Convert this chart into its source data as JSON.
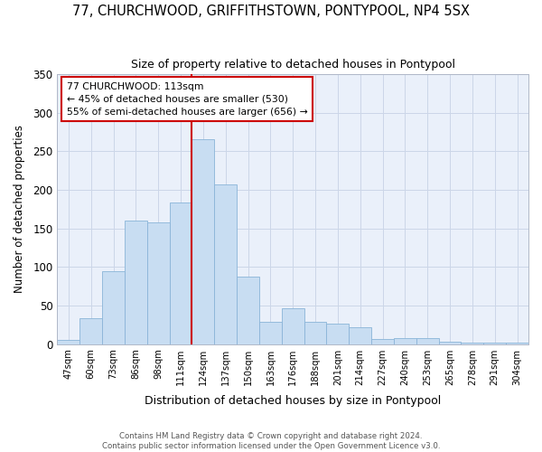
{
  "title": "77, CHURCHWOOD, GRIFFITHSTOWN, PONTYPOOL, NP4 5SX",
  "subtitle": "Size of property relative to detached houses in Pontypool",
  "xlabel": "Distribution of detached houses by size in Pontypool",
  "ylabel": "Number of detached properties",
  "categories": [
    "47sqm",
    "60sqm",
    "73sqm",
    "86sqm",
    "98sqm",
    "111sqm",
    "124sqm",
    "137sqm",
    "150sqm",
    "163sqm",
    "176sqm",
    "188sqm",
    "201sqm",
    "214sqm",
    "227sqm",
    "240sqm",
    "253sqm",
    "265sqm",
    "278sqm",
    "291sqm",
    "304sqm"
  ],
  "values": [
    5,
    34,
    95,
    160,
    158,
    184,
    265,
    207,
    88,
    29,
    47,
    29,
    27,
    22,
    7,
    8,
    8,
    3,
    2,
    2,
    2
  ],
  "bar_color": "#c8ddf2",
  "bar_edge_color": "#8ab4d8",
  "vline_x_index": 5,
  "vline_color": "#cc0000",
  "annotation_title": "77 CHURCHWOOD: 113sqm",
  "annotation_line1": "← 45% of detached houses are smaller (530)",
  "annotation_line2": "55% of semi-detached houses are larger (656) →",
  "annotation_box_edgecolor": "#cc0000",
  "ylim": [
    0,
    350
  ],
  "yticks": [
    0,
    50,
    100,
    150,
    200,
    250,
    300,
    350
  ],
  "footer_line1": "Contains HM Land Registry data © Crown copyright and database right 2024.",
  "footer_line2": "Contains public sector information licensed under the Open Government Licence v3.0.",
  "bg_color": "#ffffff",
  "plot_bg_color": "#eaf0fa",
  "grid_color": "#ccd6e8"
}
